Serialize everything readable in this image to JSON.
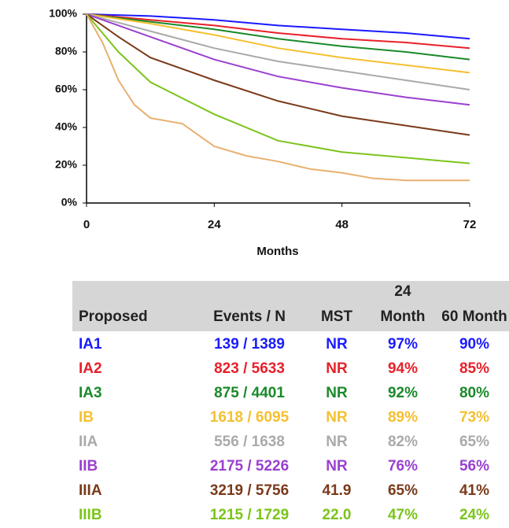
{
  "chart_data": {
    "type": "line",
    "xlabel": "Months",
    "xlim": [
      0,
      72
    ],
    "xticks": [
      0,
      24,
      48,
      72
    ],
    "ylim": [
      0,
      100
    ],
    "yticks": [
      {
        "value": 100,
        "label": "100%"
      },
      {
        "value": 80,
        "label": "80%"
      },
      {
        "value": 60,
        "label": "60%"
      },
      {
        "value": 40,
        "label": "40%"
      },
      {
        "value": 20,
        "label": "20%"
      },
      {
        "value": 0,
        "label": "0%"
      }
    ],
    "series": [
      {
        "name": "IA1",
        "color": "#1a1aff",
        "x": [
          0,
          12,
          24,
          36,
          48,
          60,
          72
        ],
        "values": [
          100,
          99,
          97,
          94,
          92,
          90,
          87
        ]
      },
      {
        "name": "IA2",
        "color": "#e8202a",
        "x": [
          0,
          12,
          24,
          36,
          48,
          60,
          72
        ],
        "values": [
          100,
          97,
          94,
          90,
          87,
          85,
          82
        ]
      },
      {
        "name": "IA3",
        "color": "#1a8a2a",
        "x": [
          0,
          12,
          24,
          36,
          48,
          60,
          72
        ],
        "values": [
          100,
          96,
          92,
          87,
          83,
          80,
          76
        ]
      },
      {
        "name": "IB",
        "color": "#f5c030",
        "x": [
          0,
          12,
          24,
          36,
          48,
          60,
          72
        ],
        "values": [
          100,
          95,
          89,
          82,
          77,
          73,
          69
        ]
      },
      {
        "name": "IIA",
        "color": "#aaaaaa",
        "x": [
          0,
          12,
          24,
          36,
          48,
          60,
          72
        ],
        "values": [
          100,
          91,
          82,
          75,
          70,
          65,
          60
        ]
      },
      {
        "name": "IIB",
        "color": "#9a40d0",
        "x": [
          0,
          12,
          24,
          36,
          48,
          60,
          72
        ],
        "values": [
          100,
          88,
          76,
          67,
          61,
          56,
          52
        ]
      },
      {
        "name": "IIIA",
        "color": "#7a3a1a",
        "x": [
          0,
          6,
          12,
          24,
          36,
          48,
          60,
          72
        ],
        "values": [
          100,
          88,
          77,
          65,
          54,
          46,
          41,
          36
        ]
      },
      {
        "name": "IIIB",
        "color": "#7cc41c",
        "x": [
          0,
          6,
          12,
          24,
          36,
          48,
          60,
          72
        ],
        "values": [
          100,
          80,
          64,
          47,
          33,
          27,
          24,
          21
        ]
      },
      {
        "color": "#e8b070",
        "x": [
          0,
          3,
          6,
          9,
          12,
          18,
          24,
          30,
          36,
          42,
          48,
          54,
          60,
          72
        ],
        "values": [
          100,
          85,
          65,
          52,
          45,
          42,
          30,
          25,
          22,
          18,
          16,
          13,
          12,
          12
        ]
      }
    ]
  },
  "table": {
    "headers": [
      "Proposed",
      "Events / N",
      "MST",
      "24 Month",
      "60 Month"
    ],
    "rows": [
      [
        "IA1",
        "139 / 1389",
        "NR",
        "97%",
        "90%"
      ],
      [
        "IA2",
        "823 / 5633",
        "NR",
        "94%",
        "85%"
      ],
      [
        "IA3",
        "875 / 4401",
        "NR",
        "92%",
        "80%"
      ],
      [
        "IB",
        "1618 / 6095",
        "NR",
        "89%",
        "73%"
      ],
      [
        "IIA",
        "556 / 1638",
        "NR",
        "82%",
        "65%"
      ],
      [
        "IIB",
        "2175 / 5226",
        "NR",
        "76%",
        "56%"
      ],
      [
        "IIIA",
        "3219 / 5756",
        "41.9",
        "65%",
        "41%"
      ],
      [
        "IIIB",
        "1215 / 1729",
        "22.0",
        "47%",
        "24%"
      ]
    ]
  }
}
